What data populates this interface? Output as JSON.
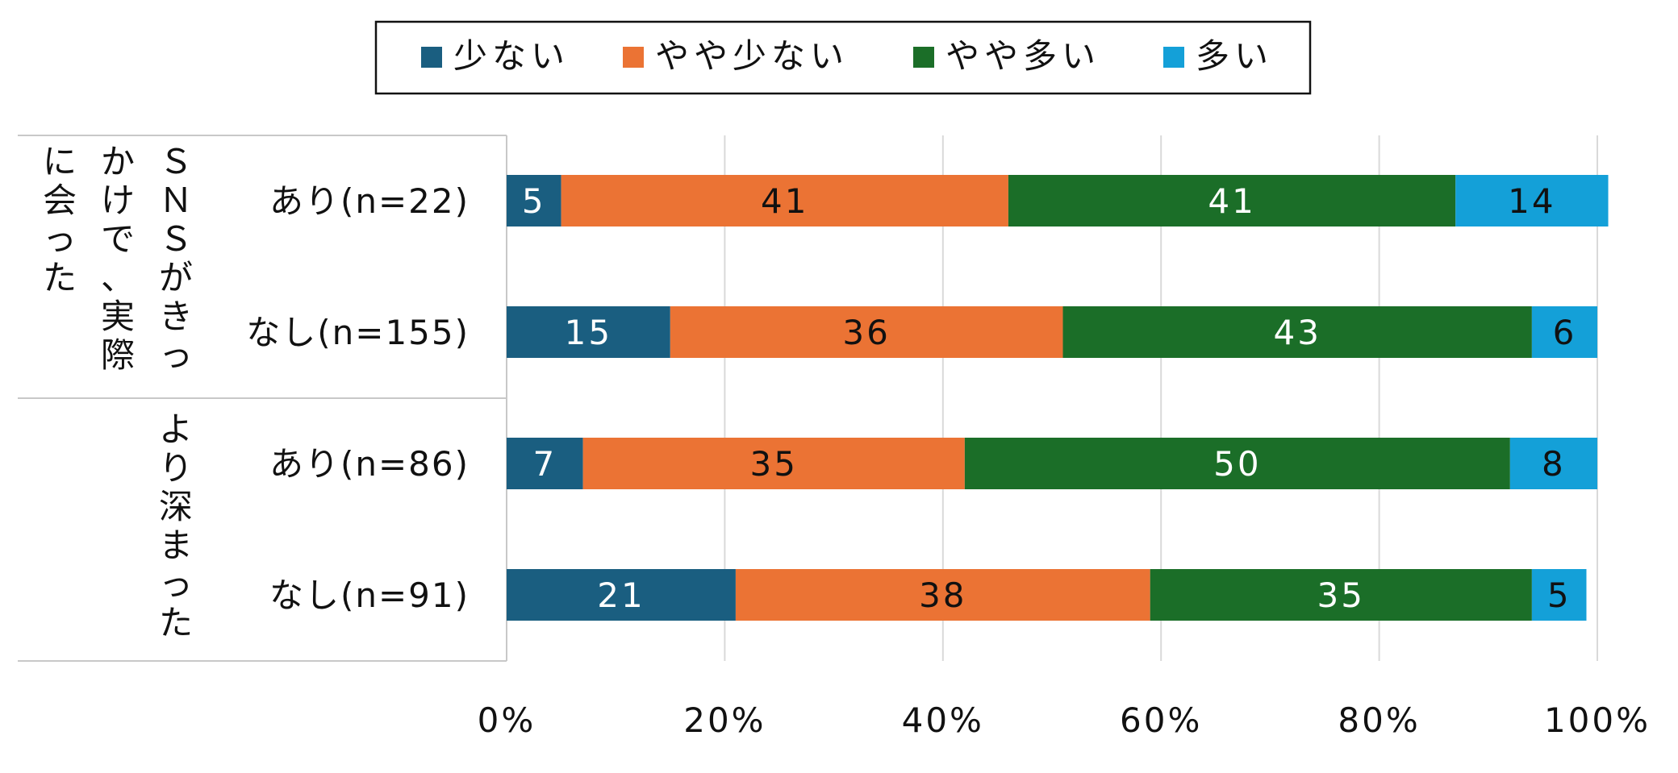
{
  "chart_data": {
    "type": "bar",
    "orientation": "horizontal",
    "stacked": true,
    "percent_stacked": true,
    "legend_placement": "top-center",
    "grid": true,
    "xlim": [
      0,
      100
    ],
    "x_ticks": [
      "0%",
      "20%",
      "40%",
      "60%",
      "80%",
      "100%"
    ],
    "groups": [
      {
        "label_lines": [
          "ＳＮＳがきっ",
          "かけで、実際",
          "に会った"
        ],
        "categories": [
          "あり(n=22)",
          "なし(n=155)"
        ]
      },
      {
        "label_lines": [
          "より深まった"
        ],
        "categories": [
          "あり(n=86)",
          "なし(n=91)"
        ]
      }
    ],
    "categories": [
      "あり(n=22)",
      "なし(n=155)",
      "あり(n=86)",
      "なし(n=91)"
    ],
    "series": [
      {
        "name": "少ない",
        "color": "#1a5e80",
        "text_color": "#ffffff",
        "values": [
          5,
          15,
          7,
          21
        ]
      },
      {
        "name": "やや少ない",
        "color": "#eb7334",
        "text_color": "#111111",
        "values": [
          41,
          36,
          35,
          38
        ]
      },
      {
        "name": "やや多い",
        "color": "#1b6e28",
        "text_color": "#ffffff",
        "values": [
          41,
          43,
          50,
          35
        ]
      },
      {
        "name": "多い",
        "color": "#14a0d8",
        "text_color": "#111111",
        "values": [
          14,
          6,
          8,
          5
        ]
      }
    ]
  }
}
